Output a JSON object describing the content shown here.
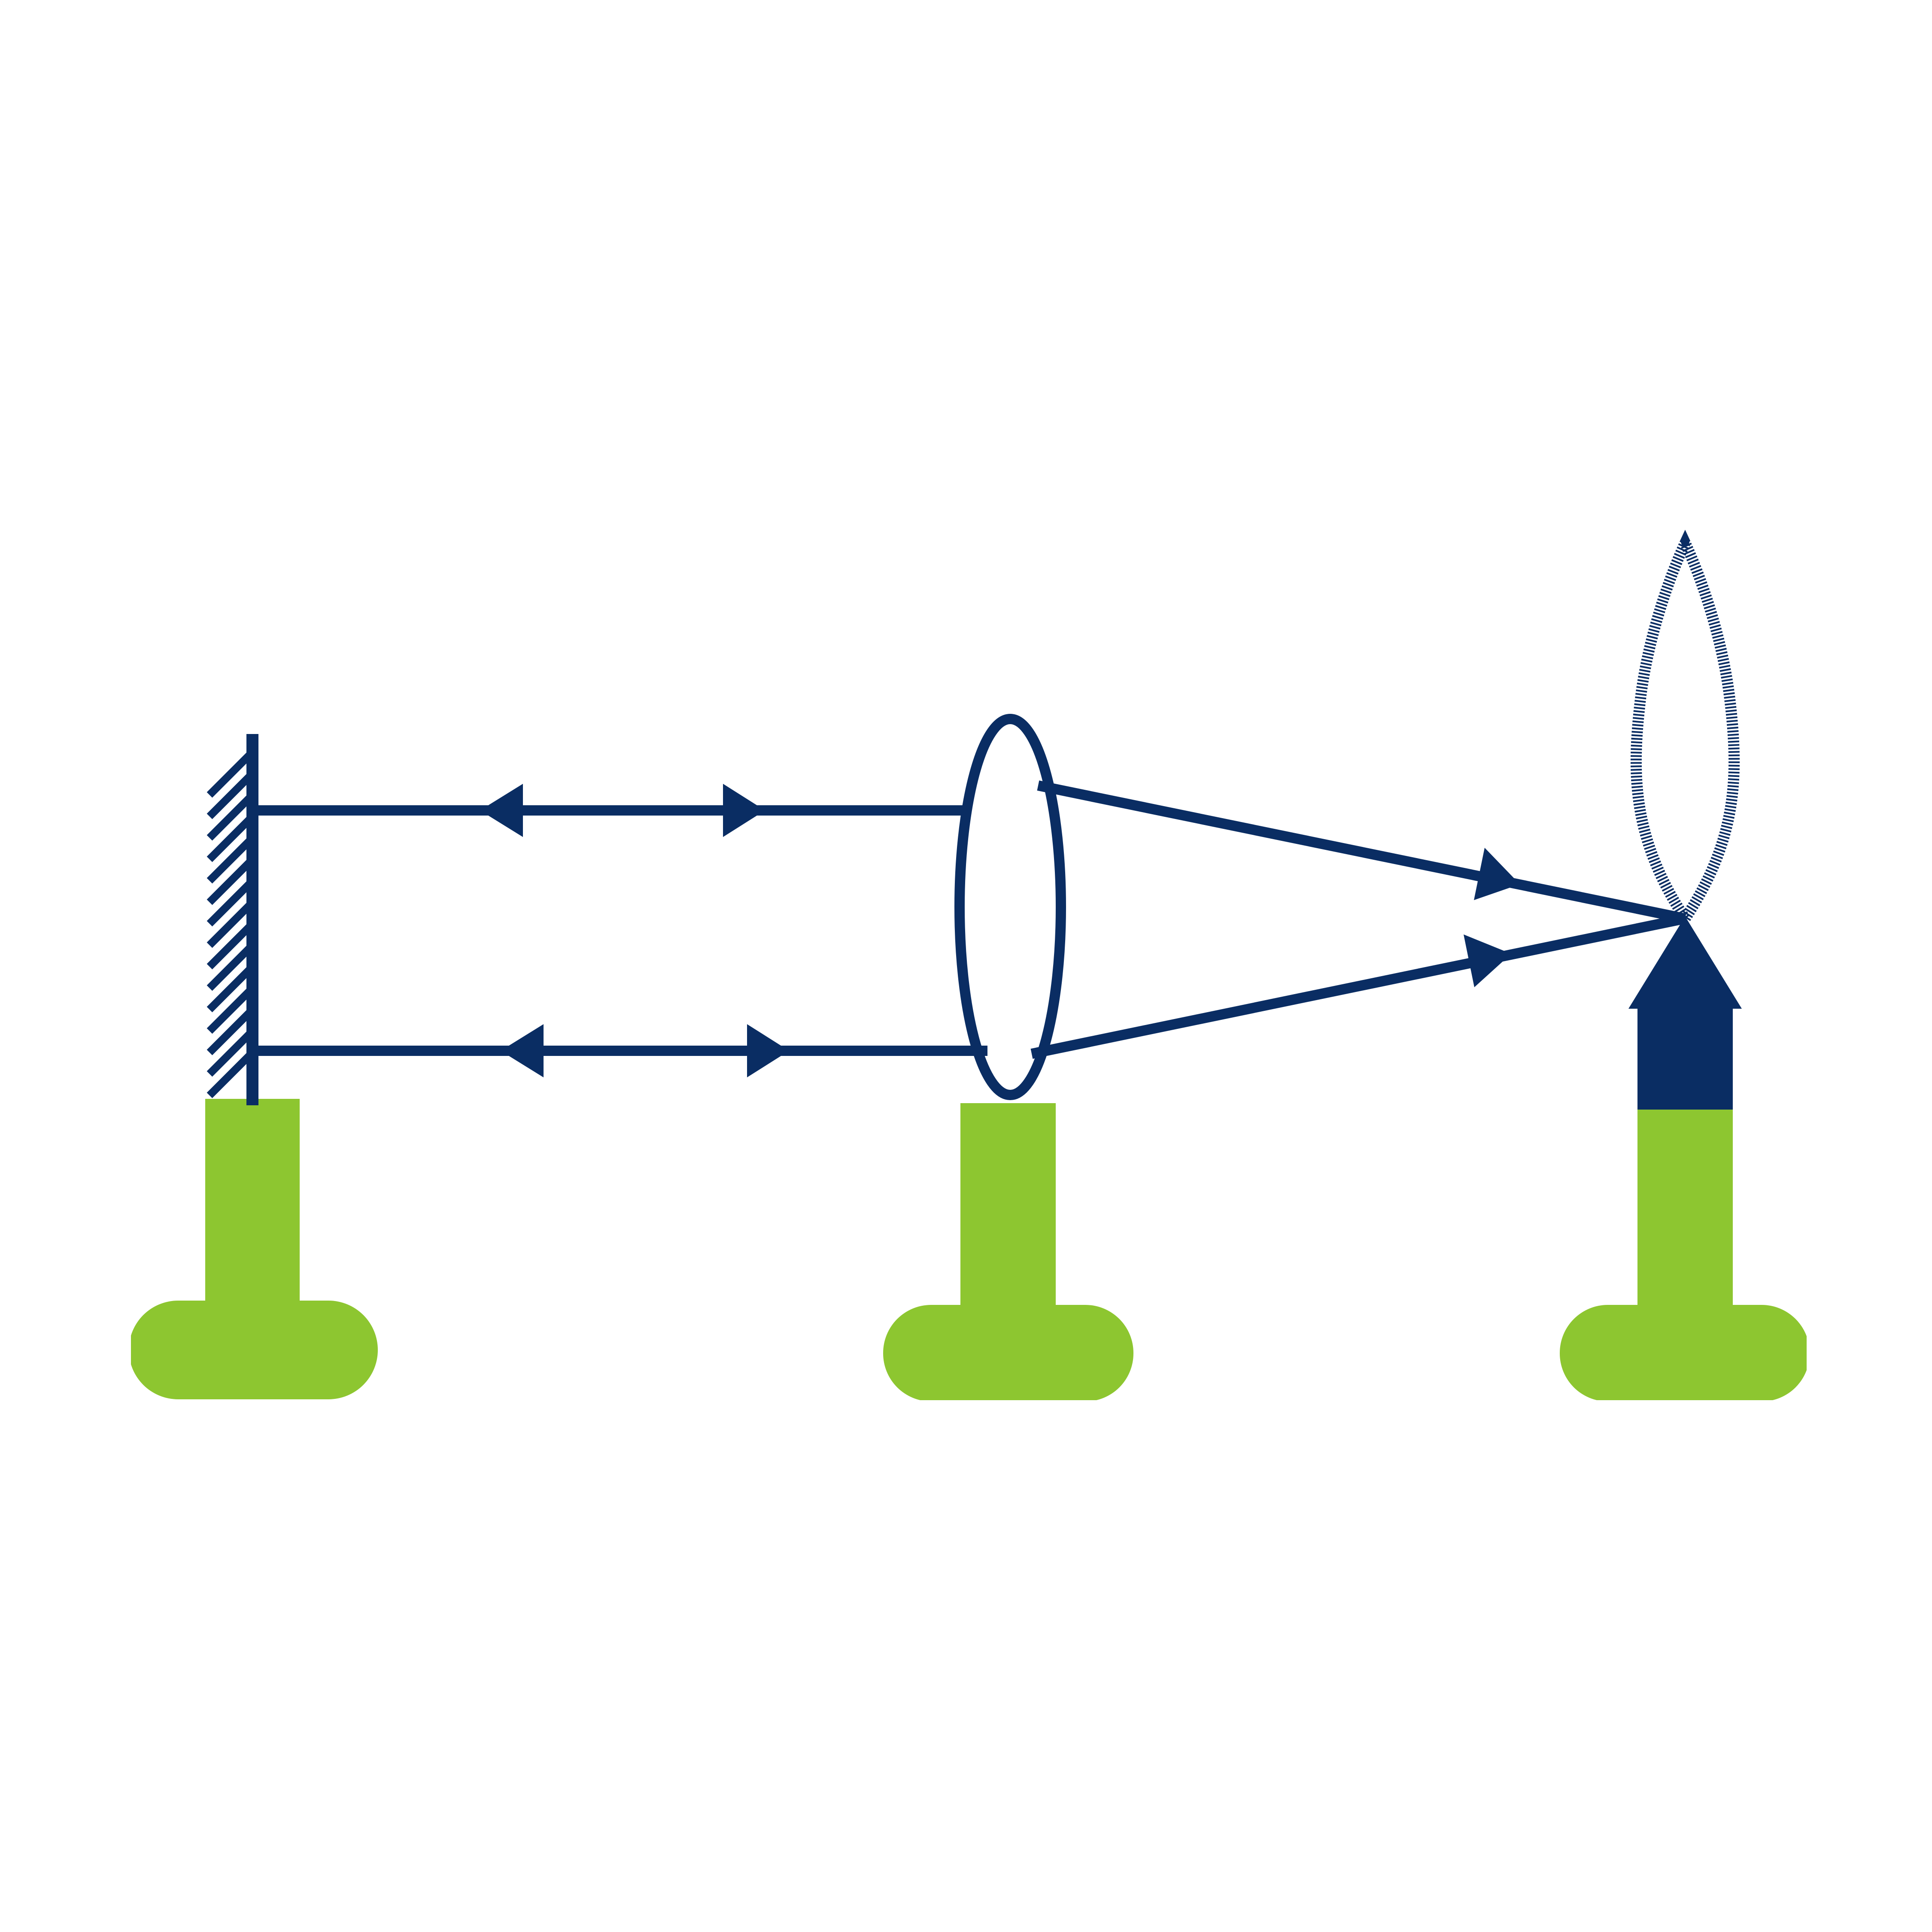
{
  "colors": {
    "background": "#ffffff",
    "line": "#0a2d63",
    "stand": "#8dc630"
  },
  "components": [
    {
      "kind": "plane-mirror",
      "icon": "hatched-mirror-icon"
    },
    {
      "kind": "convex-lens",
      "icon": "ellipse-lens-icon"
    },
    {
      "kind": "object-arrow",
      "icon": "arrow-object-icon"
    },
    {
      "kind": "flame",
      "icon": "candle-flame-icon"
    }
  ],
  "rays": [
    {
      "id": "upper-parallel",
      "directions": [
        "to-mirror",
        "to-lens"
      ]
    },
    {
      "id": "lower-parallel",
      "directions": [
        "to-mirror",
        "to-lens"
      ]
    },
    {
      "id": "upper-converging",
      "direction": "to-object"
    },
    {
      "id": "lower-converging",
      "direction": "to-object"
    }
  ]
}
